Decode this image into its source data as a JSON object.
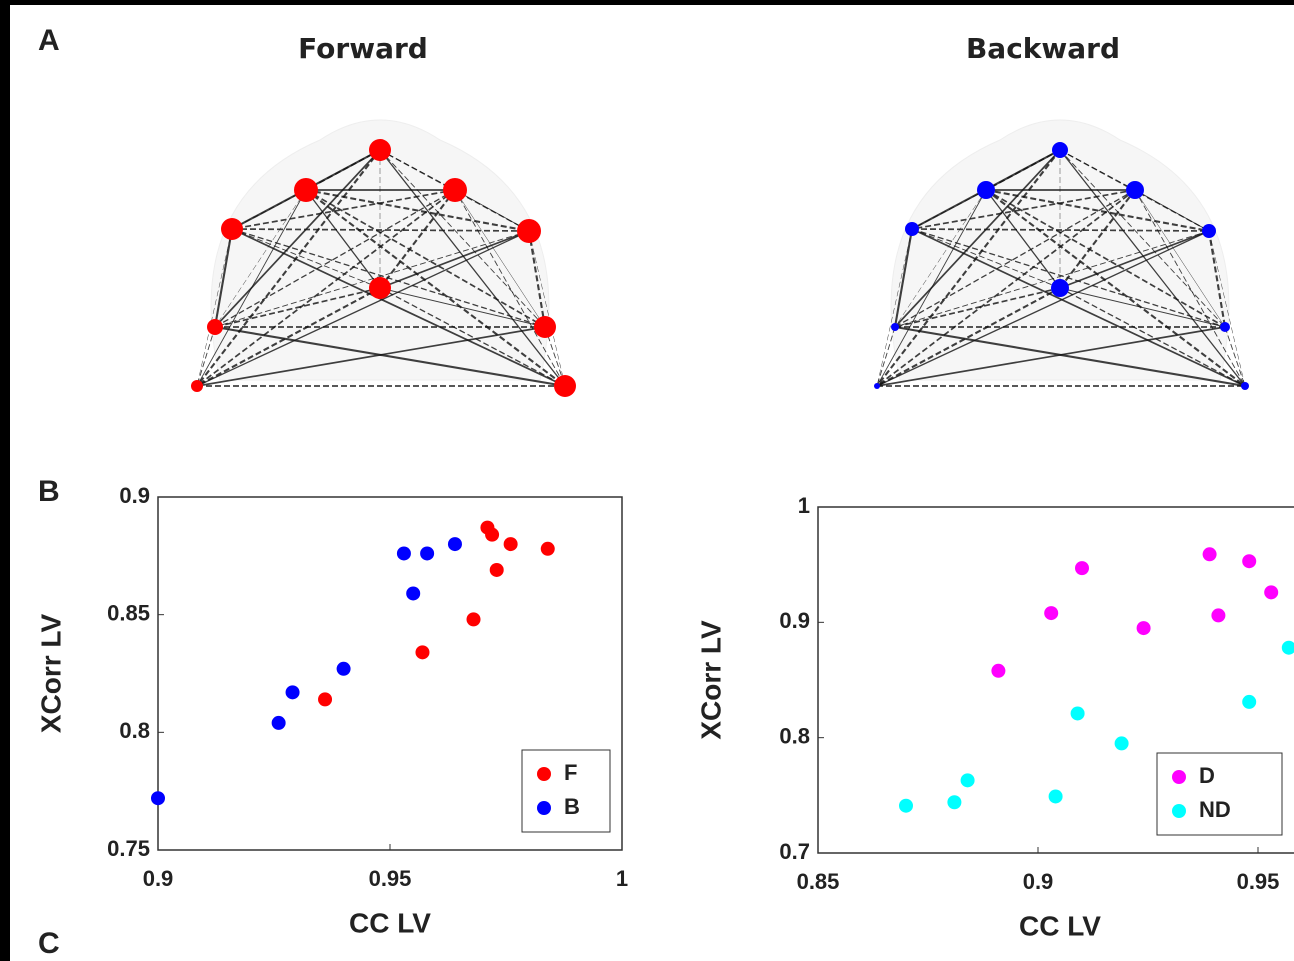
{
  "panels": [
    "A",
    "B",
    "C"
  ],
  "network_titles": [
    "Forward",
    "Backward"
  ],
  "chart_data": [
    {
      "type": "scatter",
      "xlabel": "CC LV",
      "ylabel": "XCorr LV",
      "xlim": [
        0.9,
        1
      ],
      "xticks": [
        0.9,
        0.95,
        1
      ],
      "ylim": [
        0.75,
        0.9
      ],
      "yticks": [
        0.75,
        0.8,
        0.85,
        0.9
      ],
      "legend": "lower right",
      "series": [
        {
          "name": "F",
          "color": "#ff0000",
          "x": [
            0.971,
            0.972,
            0.976,
            0.984,
            0.973,
            0.968,
            0.957,
            0.936
          ],
          "values": [
            0.887,
            0.884,
            0.88,
            0.878,
            0.869,
            0.848,
            0.834,
            0.814
          ]
        },
        {
          "name": "B",
          "color": "#0000ff",
          "x": [
            0.953,
            0.958,
            0.964,
            0.955,
            0.94,
            0.929,
            0.926,
            0.9
          ],
          "values": [
            0.876,
            0.876,
            0.88,
            0.859,
            0.827,
            0.817,
            0.804,
            0.772
          ]
        }
      ]
    },
    {
      "type": "scatter",
      "xlabel": "CC LV",
      "ylabel": "XCorr LV",
      "xlim": [
        0.85,
        1
      ],
      "xticks": [
        0.85,
        0.9,
        0.95
      ],
      "ylim": [
        0.7,
        1
      ],
      "yticks": [
        0.7,
        0.8,
        0.9,
        1
      ],
      "legend": "lower right",
      "series": [
        {
          "name": "D",
          "color": "#ff00ff",
          "x": [
            0.91,
            0.903,
            0.891,
            0.924,
            0.939,
            0.941,
            0.948,
            0.953
          ],
          "values": [
            0.947,
            0.908,
            0.858,
            0.895,
            0.959,
            0.906,
            0.953,
            0.926
          ]
        },
        {
          "name": "ND",
          "color": "#00ffff",
          "x": [
            0.957,
            0.948,
            0.909,
            0.919,
            0.904,
            0.884,
            0.881,
            0.87
          ],
          "values": [
            0.878,
            0.831,
            0.821,
            0.795,
            0.749,
            0.763,
            0.744,
            0.741
          ]
        }
      ]
    }
  ]
}
